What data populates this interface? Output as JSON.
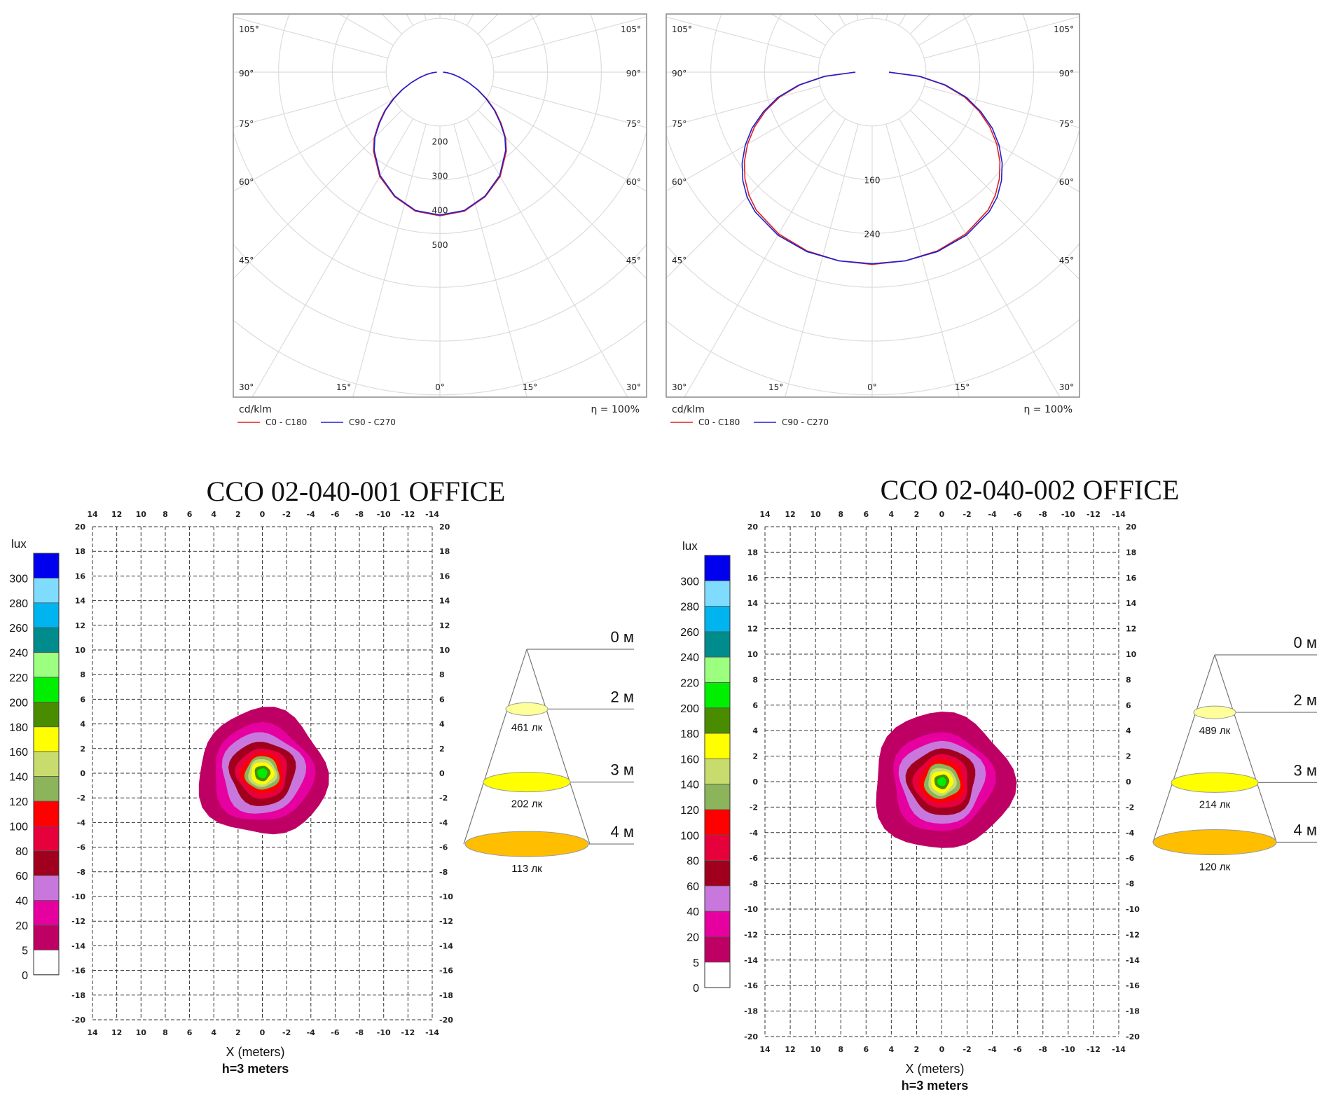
{
  "polar_charts": [
    {
      "unit_label": "cd/klm",
      "efficiency_label": "η = 100%",
      "angle_labels": [
        "105°",
        "90°",
        "75°",
        "60°",
        "45°",
        "30°",
        "15°",
        "0°"
      ],
      "ring_values": [
        200,
        300,
        400,
        500
      ],
      "ring_labels": [
        "200",
        "300",
        "400",
        "500"
      ],
      "legend": [
        "C0 - C180",
        "C90 - C270"
      ]
    },
    {
      "unit_label": "cd/klm",
      "efficiency_label": "η = 100%",
      "angle_labels": [
        "105°",
        "90°",
        "75°",
        "60°",
        "45°",
        "30°",
        "15°",
        "0°"
      ],
      "ring_values": [
        160,
        240
      ],
      "ring_labels": [
        "160",
        "240"
      ],
      "legend": [
        "C0 - C180",
        "C90 - C270"
      ]
    }
  ],
  "iso_charts": [
    {
      "title": "CCO 02-040-001 OFFICE",
      "lux_label": "lux",
      "x_label": "X (meters)",
      "height_label": "h=3 meters",
      "cone": {
        "levels": [
          "0 м",
          "2 м",
          "3 м",
          "4 м"
        ],
        "values": [
          "461 лк",
          "202 лк",
          "113 лк"
        ]
      }
    },
    {
      "title": "CCO 02-040-002 OFFICE",
      "lux_label": "lux",
      "x_label": "X (meters)",
      "height_label": "h=3 meters",
      "cone": {
        "levels": [
          "0 м",
          "2 м",
          "3 м",
          "4 м"
        ],
        "values": [
          "489 лк",
          "214 лк",
          "120 лк"
        ]
      }
    }
  ],
  "scale": {
    "labels": [
      "300",
      "280",
      "260",
      "240",
      "220",
      "200",
      "180",
      "160",
      "140",
      "120",
      "100",
      "80",
      "60",
      "40",
      "20",
      "5",
      "0"
    ],
    "colors": [
      "#0000ee",
      "#80dcff",
      "#00b4f0",
      "#008c8c",
      "#9cff80",
      "#00ee00",
      "#4a8c00",
      "#ffff00",
      "#c8dc6e",
      "#8cb45a",
      "#ff0000",
      "#e6003c",
      "#a0001e",
      "#c878dc",
      "#e600a0",
      "#be0064",
      "#ffffff"
    ]
  },
  "grid_axis": {
    "x_ticks": [
      "14",
      "12",
      "10",
      "8",
      "6",
      "4",
      "2",
      "0",
      "-2",
      "-4",
      "-6",
      "-8",
      "-10",
      "-12",
      "-14"
    ],
    "y_ticks": [
      "20",
      "18",
      "16",
      "14",
      "12",
      "10",
      "8",
      "6",
      "4",
      "2",
      "0",
      "-2",
      "-4",
      "-6",
      "-8",
      "-10",
      "-12",
      "-14",
      "-16",
      "-18",
      "-20"
    ]
  },
  "chart_data": [
    {
      "type": "line",
      "subtype": "polar",
      "unit": "cd/klm",
      "rmax": 500,
      "series": [
        {
          "name": "C0 - C180",
          "color": "#e02020",
          "points": [
            [
              0,
              417
            ],
            [
              10,
              410
            ],
            [
              20,
              385
            ],
            [
              30,
              350
            ],
            [
              40,
              300
            ],
            [
              45,
              270
            ],
            [
              50,
              232
            ],
            [
              55,
              196
            ],
            [
              60,
              158
            ],
            [
              65,
              122
            ],
            [
              70,
              89
            ],
            [
              75,
              62
            ],
            [
              80,
              40
            ],
            [
              85,
              23
            ],
            [
              90,
              10
            ]
          ]
        },
        {
          "name": "C90 - C270",
          "color": "#2020d0",
          "points": [
            [
              0,
              415
            ],
            [
              10,
              408
            ],
            [
              20,
              383
            ],
            [
              30,
              347
            ],
            [
              40,
              297
            ],
            [
              45,
              267
            ],
            [
              50,
              229
            ],
            [
              55,
              193
            ],
            [
              60,
              155
            ],
            [
              65,
              120
            ],
            [
              70,
              88
            ],
            [
              75,
              61
            ],
            [
              80,
              39
            ],
            [
              85,
              22
            ],
            [
              90,
              9
            ]
          ]
        }
      ]
    },
    {
      "type": "line",
      "subtype": "polar",
      "unit": "cd/klm",
      "rmax": 320,
      "series": [
        {
          "name": "C0 - C180",
          "color": "#e02020",
          "points": [
            [
              0,
              286
            ],
            [
              10,
              285
            ],
            [
              20,
              283
            ],
            [
              30,
              278
            ],
            [
              40,
              268
            ],
            [
              45,
              259
            ],
            [
              50,
              247
            ],
            [
              55,
              232
            ],
            [
              60,
              214
            ],
            [
              65,
              193
            ],
            [
              70,
              169
            ],
            [
              75,
              142
            ],
            [
              80,
              109
            ],
            [
              85,
              70
            ],
            [
              90,
              25
            ]
          ]
        },
        {
          "name": "C90 - C270",
          "color": "#2020d0",
          "points": [
            [
              0,
              285
            ],
            [
              10,
              285
            ],
            [
              20,
              284
            ],
            [
              30,
              280
            ],
            [
              40,
              271
            ],
            [
              45,
              263
            ],
            [
              50,
              251
            ],
            [
              55,
              236
            ],
            [
              60,
              218
            ],
            [
              65,
              197
            ],
            [
              70,
              172
            ],
            [
              75,
              145
            ],
            [
              80,
              111
            ],
            [
              85,
              71
            ],
            [
              90,
              25
            ]
          ]
        }
      ]
    },
    {
      "type": "heatmap",
      "subtype": "isolux",
      "unit": "lux",
      "x_range": [
        14,
        -14
      ],
      "y_range": [
        20,
        -20
      ],
      "contours": [
        {
          "lux": 5,
          "radius_m": 5.2
        },
        {
          "lux": 20,
          "radius_m": 3.5
        },
        {
          "lux": 40,
          "radius_m": 2.9
        },
        {
          "lux": 60,
          "radius_m": 2.3
        },
        {
          "lux": 80,
          "radius_m": 1.8
        },
        {
          "lux": 100,
          "radius_m": 1.45
        },
        {
          "lux": 120,
          "radius_m": 1.2
        },
        {
          "lux": 140,
          "radius_m": 1.0
        },
        {
          "lux": 160,
          "radius_m": 0.8
        },
        {
          "lux": 180,
          "radius_m": 0.55
        },
        {
          "lux": 200,
          "radius_m": 0.35
        }
      ]
    },
    {
      "type": "heatmap",
      "subtype": "isolux",
      "unit": "lux",
      "x_range": [
        14,
        -14
      ],
      "y_range": [
        20,
        -20
      ],
      "contours": [
        {
          "lux": 5,
          "radius_m": 5.4
        },
        {
          "lux": 20,
          "radius_m": 3.4
        },
        {
          "lux": 40,
          "radius_m": 2.85
        },
        {
          "lux": 60,
          "radius_m": 2.3
        },
        {
          "lux": 80,
          "radius_m": 1.85
        },
        {
          "lux": 100,
          "radius_m": 1.5
        },
        {
          "lux": 120,
          "radius_m": 1.2
        },
        {
          "lux": 140,
          "radius_m": 0.95
        },
        {
          "lux": 160,
          "radius_m": 0.75
        },
        {
          "lux": 180,
          "radius_m": 0.5
        },
        {
          "lux": 200,
          "radius_m": 0.3
        }
      ]
    }
  ]
}
